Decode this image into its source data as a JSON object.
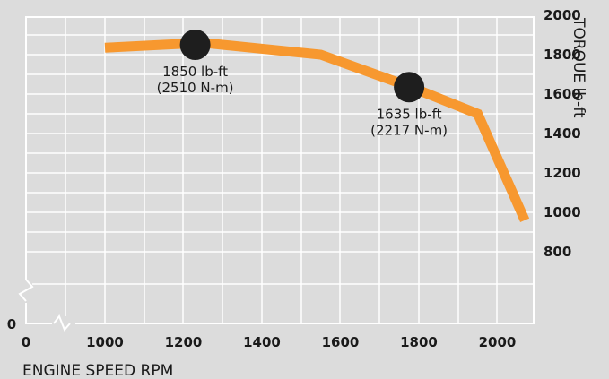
{
  "chart_data": {
    "type": "line",
    "xlabel": "ENGINE SPEED RPM",
    "ylabel": "TORQUE lb-ft",
    "x_ticks": [
      0,
      1000,
      1200,
      1400,
      1600,
      1800,
      2000
    ],
    "y_ticks": [
      800,
      1000,
      1200,
      1400,
      1600,
      1800,
      2000
    ],
    "y_zero_label": "0",
    "axis_breaks": [
      "x",
      "y"
    ],
    "grid": true,
    "xlim": [
      1000,
      2100
    ],
    "ylim": [
      800,
      2000
    ],
    "series": [
      {
        "color": "#f7982f",
        "points": [
          {
            "x": 1000,
            "y": 1835
          },
          {
            "x": 1250,
            "y": 1860
          },
          {
            "x": 1550,
            "y": 1800
          },
          {
            "x": 1780,
            "y": 1635
          },
          {
            "x": 1950,
            "y": 1500
          },
          {
            "x": 2070,
            "y": 960
          }
        ]
      }
    ],
    "annotations": [
      {
        "x": 1230,
        "y": 1850,
        "lines": [
          "1850 lb-ft",
          "(2510 N-m)"
        ]
      },
      {
        "x": 1775,
        "y": 1635,
        "lines": [
          "1635 lb-ft",
          "(2217 N-m)"
        ]
      }
    ],
    "marker_color": "#1e1e1e"
  }
}
